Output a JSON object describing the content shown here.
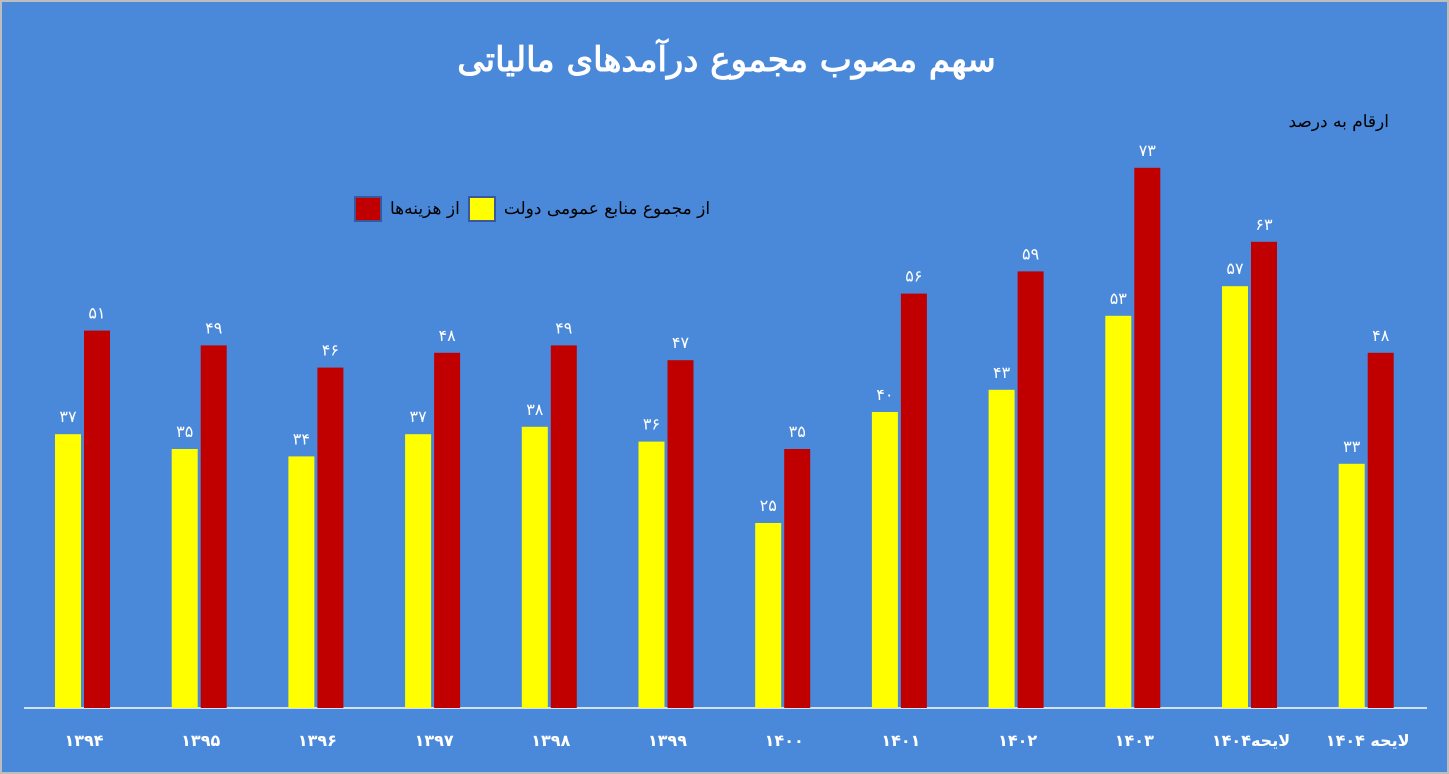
{
  "chart_data": {
    "type": "bar",
    "title": "سهم مصوب مجموع درآمدهای مالیاتی",
    "unit_note": "ارقام به درصد",
    "categories": [
      "۱۳۹۴",
      "۱۳۹۵",
      "۱۳۹۶",
      "۱۳۹۷",
      "۱۳۹۸",
      "۱۳۹۹",
      "۱۴۰۰",
      "۱۴۰۱",
      "۱۴۰۲",
      "۱۴۰۳",
      "لایحه۱۴۰۴",
      "لایحه ۱۴۰۴"
    ],
    "series": [
      {
        "name": "از مجموع منابع عمومی دولت",
        "color": "#ffff00",
        "values": [
          37,
          35,
          34,
          37,
          38,
          36,
          25,
          40,
          43,
          53,
          57,
          33
        ],
        "labels": [
          "۳۷",
          "۳۵",
          "۳۴",
          "۳۷",
          "۳۸",
          "۳۶",
          "۲۵",
          "۴۰",
          "۴۳",
          "۵۳",
          "۵۷",
          "۳۳"
        ]
      },
      {
        "name": "از هزینه‌ها",
        "color": "#c00000",
        "values": [
          51,
          49,
          46,
          48,
          49,
          47,
          35,
          56,
          59,
          73,
          63,
          48
        ],
        "labels": [
          "۵۱",
          "۴۹",
          "۴۶",
          "۴۸",
          "۴۹",
          "۴۷",
          "۳۵",
          "۵۶",
          "۵۹",
          "۷۳",
          "۶۳",
          "۴۸"
        ]
      }
    ],
    "ylim": [
      0,
      80
    ],
    "grid": false,
    "legend_position": "top-left",
    "background_color": "#4a88d9",
    "axis_color": "#ffffff",
    "label_color": "#ffffff"
  }
}
